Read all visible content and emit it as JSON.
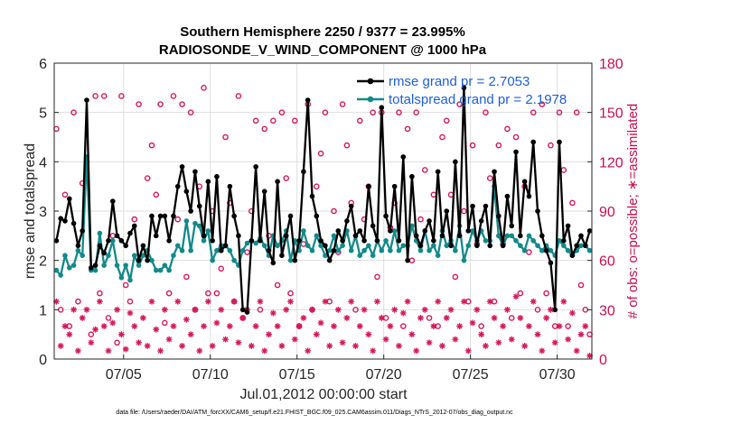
{
  "chart_data": {
    "type": "line",
    "title": "Southern Hemisphere 2250 / 9377 = 23.995%",
    "subtitle": "RADIOSONDE_V_WIND_COMPONENT @ 1000 hPa",
    "xlabel": "Jul.01,2012 00:00:00 start",
    "ylabel": "rmse and totalspread",
    "ylabel_right": "# of obs: o=possible; ∗=assimilated",
    "footnote": "data file: /Users/raeder/DAI/ATM_forcXX/CAM6_setup/f.e21.FHIST_BGC.f09_025.CAM6assim.011/Diags_NTrS_2012-07/obs_diag_output.nc",
    "xlim": [
      1,
      32
    ],
    "ylim": [
      0,
      6
    ],
    "ylim_right": [
      0,
      180
    ],
    "x_ticks": [
      5,
      10,
      15,
      20,
      25,
      30
    ],
    "x_tick_labels": [
      "07/05",
      "07/10",
      "07/15",
      "07/20",
      "07/25",
      "07/30"
    ],
    "y_ticks": [
      0,
      1,
      2,
      3,
      4,
      5,
      6
    ],
    "y_tick_labels": [
      "0",
      "1",
      "2",
      "3",
      "4",
      "5",
      "6"
    ],
    "y_right_ticks": [
      0,
      30,
      60,
      90,
      120,
      150,
      180
    ],
    "y_right_tick_labels": [
      "0",
      "30",
      "60",
      "90",
      "120",
      "150",
      "180"
    ],
    "grid": true,
    "legend_position": "top-right",
    "legend": [
      "rmse grand pr = 2.7053",
      "totalspread grand pr = 2.1978"
    ],
    "colors": {
      "rmse": "#000000",
      "spread": "#138a8a",
      "obs": "#d6185d"
    },
    "n_times": 124,
    "rmse": [
      2.4,
      2.85,
      2.8,
      3.25,
      2.75,
      2.3,
      2.6,
      5.25,
      1.85,
      1.9,
      2.3,
      2.15,
      2.4,
      3.2,
      2.5,
      2.4,
      2.3,
      2.55,
      2.7,
      2.0,
      2.3,
      2.0,
      2.9,
      2.5,
      2.9,
      2.9,
      2.4,
      2.9,
      3.5,
      3.9,
      3.4,
      3.0,
      3.8,
      3.1,
      2.5,
      3.6,
      2.4,
      3.7,
      2.2,
      2.3,
      3.5,
      2.9,
      2.5,
      1.0,
      0.95,
      2.4,
      3.9,
      2.4,
      3.4,
      2.2,
      1.95,
      3.6,
      2.1,
      2.5,
      2.9,
      2.0,
      2.4,
      3.8,
      5.25,
      3.3,
      2.9,
      2.4,
      2.3,
      2.0,
      2.2,
      2.6,
      2.4,
      2.8,
      3.1,
      2.5,
      2.6,
      2.4,
      3.5,
      2.7,
      2.4,
      5.1,
      2.9,
      2.6,
      3.5,
      2.4,
      4.1,
      2.0,
      3.7,
      2.5,
      2.3,
      2.6,
      2.8,
      2.4,
      3.8,
      2.5,
      3.0,
      2.3,
      4.0,
      2.5,
      5.5,
      2.6,
      3.1,
      2.3,
      2.8,
      3.1,
      2.3,
      3.8,
      2.9,
      2.3,
      3.3,
      2.7,
      4.2,
      2.5,
      3.6,
      3.3,
      4.4,
      3.0,
      2.5,
      2.2,
      1.95,
      1.0,
      4.4,
      2.4,
      2.7,
      2.1,
      2.3,
      2.5,
      2.3,
      2.6
    ],
    "totalspread": [
      1.8,
      1.7,
      2.1,
      1.85,
      1.9,
      2.2,
      2.1,
      4.1,
      1.8,
      1.8,
      2.55,
      1.9,
      2.1,
      2.4,
      1.9,
      1.65,
      1.9,
      1.6,
      2.1,
      1.9,
      2.1,
      2.2,
      2.0,
      1.8,
      1.8,
      1.9,
      1.8,
      2.1,
      2.3,
      2.2,
      2.8,
      2.2,
      2.75,
      2.7,
      2.4,
      2.6,
      2.0,
      2.2,
      2.3,
      2.3,
      2.2,
      2.0,
      1.9,
      2.2,
      2.35,
      2.4,
      2.35,
      2.45,
      2.3,
      2.1,
      2.5,
      2.3,
      2.4,
      2.6,
      2.0,
      2.4,
      2.2,
      2.6,
      2.3,
      2.2,
      2.5,
      2.3,
      2.1,
      2.2,
      2.5,
      2.2,
      2.3,
      2.6,
      2.2,
      2.5,
      2.1,
      2.2,
      2.3,
      2.1,
      2.4,
      2.2,
      2.4,
      2.2,
      2.6,
      2.2,
      2.3,
      2.3,
      2.7,
      2.4,
      2.2,
      2.6,
      2.2,
      2.3,
      2.1,
      2.6,
      2.3,
      2.4,
      2.2,
      2.7,
      2.0,
      2.3,
      2.6,
      2.4,
      2.6,
      2.4,
      2.4,
      3.5,
      2.5,
      2.3,
      2.5,
      2.5,
      2.4,
      2.3,
      2.2,
      2.5,
      2.4,
      2.3,
      2.2,
      2.3,
      2.2,
      2.1,
      2.4,
      2.3,
      2.2,
      2.1,
      2.2,
      2.3,
      2.3,
      2.2
    ],
    "possible_obs": [
      140,
      30,
      100,
      20,
      150,
      35,
      107,
      120,
      15,
      160,
      40,
      160,
      25,
      75,
      10,
      160,
      45,
      35,
      85,
      155,
      65,
      110,
      130,
      100,
      155,
      22,
      40,
      160,
      85,
      155,
      50,
      150,
      30,
      105,
      165,
      40,
      90,
      40,
      55,
      135,
      95,
      35,
      160,
      25,
      65,
      90,
      145,
      30,
      140,
      75,
      145,
      45,
      150,
      110,
      40,
      145,
      20,
      70,
      155,
      30,
      105,
      125,
      150,
      35,
      90,
      65,
      155,
      130,
      95,
      30,
      145,
      85,
      105,
      150,
      50,
      150,
      25,
      80,
      95,
      150,
      20,
      140,
      60,
      150,
      85,
      115,
      25,
      100,
      20,
      135,
      145,
      100,
      50,
      155,
      90,
      35,
      130,
      70,
      20,
      150,
      110,
      35,
      130,
      70,
      140,
      25,
      135,
      40,
      105,
      65,
      150,
      30,
      155,
      40,
      130,
      20,
      150,
      115,
      20,
      95,
      150,
      45,
      30,
      15
    ],
    "assimilated_obs": [
      35,
      8,
      20,
      15,
      30,
      5,
      25,
      30,
      10,
      18,
      35,
      20,
      5,
      22,
      30,
      15,
      6,
      28,
      20,
      10,
      25,
      8,
      35,
      18,
      5,
      30,
      12,
      20,
      35,
      8,
      24,
      15,
      30,
      5,
      20,
      35,
      8,
      22,
      30,
      12,
      20,
      35,
      10,
      25,
      30,
      8,
      20,
      35,
      5,
      15,
      28,
      20,
      8,
      30,
      35,
      12,
      20,
      25,
      5,
      30,
      15,
      22,
      35,
      8,
      20,
      30,
      10,
      25,
      35,
      8,
      20,
      30,
      15,
      5,
      35,
      25,
      12,
      20,
      30,
      8,
      28,
      35,
      15,
      5,
      25,
      30,
      10,
      20,
      35,
      8,
      25,
      30,
      12,
      20,
      35,
      5,
      22,
      30,
      15,
      8,
      35,
      25,
      10,
      20,
      30,
      12,
      38,
      25,
      8,
      20,
      35,
      15,
      5,
      25,
      30,
      10,
      20,
      35,
      12,
      28,
      5,
      15,
      20,
      2
    ]
  }
}
